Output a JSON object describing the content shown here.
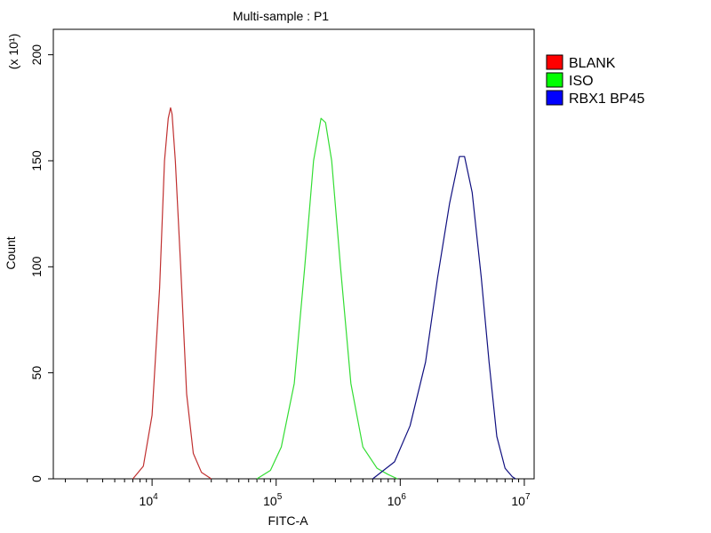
{
  "chart_data": {
    "type": "line",
    "title": "Multi-sample : P1",
    "xlabel": "FITC-A",
    "ylabel": "Count",
    "y_multiplier_label": "(x 10¹)",
    "x_scale": "log",
    "xlim": [
      1600,
      12000000
    ],
    "ylim": [
      0,
      212
    ],
    "x_ticks": [
      {
        "value": 10000,
        "base": "10",
        "exp": "4"
      },
      {
        "value": 100000,
        "base": "10",
        "exp": "5"
      },
      {
        "value": 1000000,
        "base": "10",
        "exp": "6"
      },
      {
        "value": 10000000,
        "base": "10",
        "exp": "7"
      }
    ],
    "y_ticks": [
      0,
      50,
      100,
      150,
      200
    ],
    "legend_position": "right",
    "series": [
      {
        "name": "BLANK",
        "color": "#c03030",
        "swatch": "#ff0000",
        "x": [
          7000,
          8500,
          10000,
          11500,
          12600,
          13500,
          14100,
          14500,
          15400,
          17000,
          19000,
          21500,
          25000,
          30000
        ],
        "y": [
          0,
          6,
          30,
          90,
          150,
          170,
          175,
          172,
          150,
          100,
          40,
          12,
          3,
          0
        ]
      },
      {
        "name": "ISO",
        "color": "#33dd33",
        "swatch": "#00ff00",
        "x": [
          70000,
          90000,
          110000,
          140000,
          170000,
          200000,
          230000,
          250000,
          280000,
          330000,
          400000,
          500000,
          650000,
          800000,
          950000
        ],
        "y": [
          0,
          4,
          15,
          45,
          100,
          150,
          170,
          168,
          150,
          100,
          45,
          15,
          5,
          2,
          0
        ]
      },
      {
        "name": "RBX1 BP45",
        "color": "#101080",
        "swatch": "#0000ff",
        "x": [
          600000,
          900000,
          1200000,
          1600000,
          2000000,
          2500000,
          3000000,
          3300000,
          3800000,
          4500000,
          5200000,
          6000000,
          7000000,
          8000000,
          8500000
        ],
        "y": [
          0,
          8,
          25,
          55,
          95,
          130,
          152,
          152,
          135,
          95,
          55,
          20,
          5,
          1,
          0
        ]
      }
    ]
  }
}
